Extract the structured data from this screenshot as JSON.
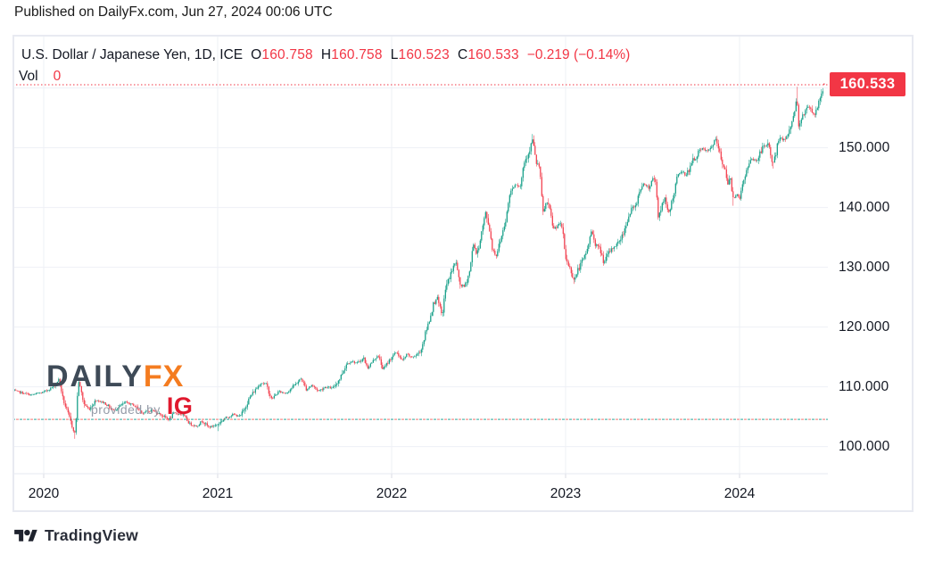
{
  "page": {
    "published": "Published on DailyFx.com, Jun 27, 2024 00:06 UTC"
  },
  "legend": {
    "title": "U.S. Dollar / Japanese Yen, 1D, ICE",
    "open_label": "O",
    "open": "160.758",
    "high_label": "H",
    "high": "160.758",
    "low_label": "L",
    "low": "160.523",
    "close_label": "C",
    "close": "160.533",
    "change": "−0.219 (−0.14%)",
    "vol_label": "Vol",
    "vol_value": "0"
  },
  "axes": {
    "last_price": "160.533",
    "y_labels": [
      "150.000",
      "140.000",
      "130.000",
      "120.000",
      "110.000",
      "100.000"
    ],
    "x_labels": [
      "2020",
      "2021",
      "2022",
      "2023",
      "2024"
    ]
  },
  "watermark": {
    "brand_daily": "DAILY",
    "brand_fx": "FX",
    "provided_by": "provided by",
    "ig": "IG"
  },
  "footer": {
    "attribution": "TradingView"
  },
  "colors": {
    "up": "#089981",
    "down": "#f23645",
    "accent_red": "#f23645",
    "dailyfx_dark": "#3e4a57",
    "dailyfx_orange": "#f47c20",
    "ig_red": "#e0182d",
    "text_dark": "#131722",
    "grid": "#eef0f6"
  },
  "chart_data": {
    "type": "candlestick",
    "title": "U.S. Dollar / Japanese Yen, 1D, ICE",
    "symbol": "USD/JPY",
    "interval": "1D",
    "exchange": "ICE",
    "last": {
      "open": 160.758,
      "high": 160.758,
      "low": 160.523,
      "close": 160.533,
      "change": -0.219,
      "change_pct": -0.14,
      "volume": 0
    },
    "x_unit": "year_decimal",
    "x_range": [
      2019.82,
      2024.5
    ],
    "y_range": [
      97.5,
      162.5
    ],
    "x_ticks": [
      2020,
      2021,
      2022,
      2023,
      2024
    ],
    "y_ticks": [
      100,
      110,
      120,
      130,
      140,
      150,
      160
    ],
    "grid": true,
    "reference_lines": [
      {
        "price": 160.533,
        "style": "dotted",
        "color": "#f23645"
      },
      {
        "price": 104.55,
        "style": "dashed",
        "color": "#2aa79c"
      },
      {
        "price": 104.55,
        "style": "dashed",
        "color": "#f7827f"
      }
    ],
    "price_path": [
      [
        2019.82,
        109.4
      ],
      [
        2019.93,
        108.6
      ],
      [
        2020.0,
        109.1
      ],
      [
        2020.05,
        109.9
      ],
      [
        2020.09,
        111.3
      ],
      [
        2020.11,
        108.0
      ],
      [
        2020.18,
        102.0
      ],
      [
        2020.2,
        111.2
      ],
      [
        2020.23,
        107.2
      ],
      [
        2020.26,
        106.2
      ],
      [
        2020.3,
        107.8
      ],
      [
        2020.35,
        107.3
      ],
      [
        2020.4,
        106.0
      ],
      [
        2020.47,
        107.4
      ],
      [
        2020.52,
        106.9
      ],
      [
        2020.57,
        105.6
      ],
      [
        2020.62,
        106.1
      ],
      [
        2020.67,
        105.4
      ],
      [
        2020.72,
        104.5
      ],
      [
        2020.75,
        105.6
      ],
      [
        2020.8,
        105.3
      ],
      [
        2020.84,
        103.8
      ],
      [
        2020.88,
        103.4
      ],
      [
        2020.91,
        104.3
      ],
      [
        2020.95,
        103.2
      ],
      [
        2021.0,
        103.7
      ],
      [
        2021.04,
        104.7
      ],
      [
        2021.09,
        105.4
      ],
      [
        2021.13,
        105.0
      ],
      [
        2021.19,
        108.5
      ],
      [
        2021.25,
        110.7
      ],
      [
        2021.28,
        110.3
      ],
      [
        2021.31,
        107.9
      ],
      [
        2021.35,
        109.2
      ],
      [
        2021.39,
        108.9
      ],
      [
        2021.44,
        110.2
      ],
      [
        2021.48,
        111.4
      ],
      [
        2021.51,
        109.5
      ],
      [
        2021.54,
        110.3
      ],
      [
        2021.58,
        109.3
      ],
      [
        2021.62,
        110.0
      ],
      [
        2021.66,
        109.7
      ],
      [
        2021.7,
        111.3
      ],
      [
        2021.74,
        113.8
      ],
      [
        2021.77,
        114.3
      ],
      [
        2021.8,
        113.9
      ],
      [
        2021.84,
        114.8
      ],
      [
        2021.86,
        113.1
      ],
      [
        2021.89,
        114.2
      ],
      [
        2021.92,
        115.3
      ],
      [
        2021.95,
        113.0
      ],
      [
        2021.97,
        113.7
      ],
      [
        2022.0,
        115.0
      ],
      [
        2022.03,
        115.8
      ],
      [
        2022.06,
        114.3
      ],
      [
        2022.09,
        115.5
      ],
      [
        2022.11,
        114.9
      ],
      [
        2022.14,
        115.2
      ],
      [
        2022.17,
        116.2
      ],
      [
        2022.19,
        118.5
      ],
      [
        2022.22,
        121.5
      ],
      [
        2022.24,
        123.8
      ],
      [
        2022.26,
        125.0
      ],
      [
        2022.29,
        121.8
      ],
      [
        2022.31,
        126.5
      ],
      [
        2022.34,
        129.0
      ],
      [
        2022.37,
        131.0
      ],
      [
        2022.39,
        127.2
      ],
      [
        2022.42,
        126.7
      ],
      [
        2022.45,
        129.5
      ],
      [
        2022.47,
        134.2
      ],
      [
        2022.49,
        131.9
      ],
      [
        2022.52,
        136.3
      ],
      [
        2022.54,
        139.1
      ],
      [
        2022.56,
        136.8
      ],
      [
        2022.58,
        133.0
      ],
      [
        2022.6,
        131.9
      ],
      [
        2022.63,
        135.0
      ],
      [
        2022.66,
        138.5
      ],
      [
        2022.68,
        142.5
      ],
      [
        2022.71,
        144.0
      ],
      [
        2022.74,
        143.5
      ],
      [
        2022.76,
        147.5
      ],
      [
        2022.79,
        149.3
      ],
      [
        2022.81,
        151.5
      ],
      [
        2022.83,
        147.5
      ],
      [
        2022.85,
        146.8
      ],
      [
        2022.87,
        139.0
      ],
      [
        2022.89,
        141.0
      ],
      [
        2022.91,
        139.5
      ],
      [
        2022.93,
        136.3
      ],
      [
        2022.96,
        137.2
      ],
      [
        2022.98,
        136.8
      ],
      [
        2023.0,
        131.5
      ],
      [
        2023.02,
        130.2
      ],
      [
        2023.05,
        127.8
      ],
      [
        2023.07,
        129.5
      ],
      [
        2023.1,
        131.2
      ],
      [
        2023.12,
        132.5
      ],
      [
        2023.15,
        136.2
      ],
      [
        2023.17,
        134.0
      ],
      [
        2023.2,
        132.8
      ],
      [
        2023.22,
        130.7
      ],
      [
        2023.25,
        132.5
      ],
      [
        2023.28,
        133.5
      ],
      [
        2023.3,
        134.0
      ],
      [
        2023.33,
        135.5
      ],
      [
        2023.35,
        137.5
      ],
      [
        2023.38,
        139.8
      ],
      [
        2023.4,
        140.0
      ],
      [
        2023.43,
        143.3
      ],
      [
        2023.46,
        144.0
      ],
      [
        2023.48,
        143.2
      ],
      [
        2023.5,
        144.9
      ],
      [
        2023.52,
        144.5
      ],
      [
        2023.53,
        138.3
      ],
      [
        2023.55,
        140.0
      ],
      [
        2023.57,
        141.5
      ],
      [
        2023.59,
        138.8
      ],
      [
        2023.62,
        142.0
      ],
      [
        2023.64,
        144.8
      ],
      [
        2023.66,
        146.0
      ],
      [
        2023.69,
        145.5
      ],
      [
        2023.71,
        146.3
      ],
      [
        2023.73,
        147.8
      ],
      [
        2023.75,
        148.5
      ],
      [
        2023.77,
        149.5
      ],
      [
        2023.79,
        149.8
      ],
      [
        2023.82,
        149.3
      ],
      [
        2023.84,
        150.2
      ],
      [
        2023.86,
        151.5
      ],
      [
        2023.88,
        149.8
      ],
      [
        2023.9,
        147.3
      ],
      [
        2023.92,
        146.5
      ],
      [
        2023.93,
        143.8
      ],
      [
        2023.95,
        144.8
      ],
      [
        2023.96,
        141.5
      ],
      [
        2023.99,
        142.5
      ],
      [
        2024.0,
        141.0
      ],
      [
        2024.02,
        144.5
      ],
      [
        2024.05,
        146.8
      ],
      [
        2024.07,
        148.1
      ],
      [
        2024.1,
        147.8
      ],
      [
        2024.12,
        149.3
      ],
      [
        2024.14,
        150.3
      ],
      [
        2024.16,
        150.5
      ],
      [
        2024.17,
        150.2
      ],
      [
        2024.19,
        147.2
      ],
      [
        2024.21,
        149.0
      ],
      [
        2024.22,
        151.3
      ],
      [
        2024.25,
        151.5
      ],
      [
        2024.27,
        151.7
      ],
      [
        2024.29,
        153.0
      ],
      [
        2024.31,
        155.5
      ],
      [
        2024.33,
        158.3
      ],
      [
        2024.34,
        153.5
      ],
      [
        2024.36,
        155.5
      ],
      [
        2024.38,
        156.2
      ],
      [
        2024.4,
        157.0
      ],
      [
        2024.42,
        156.0
      ],
      [
        2024.43,
        155.3
      ],
      [
        2024.45,
        157.0
      ],
      [
        2024.47,
        158.8
      ],
      [
        2024.48,
        159.6
      ],
      [
        2024.49,
        160.4
      ]
    ],
    "wick_extremes": {
      "highs": [
        [
          2022.81,
          152.3
        ],
        [
          2024.33,
          160.2
        ]
      ],
      "lows": [
        [
          2020.18,
          101.3
        ],
        [
          2021.0,
          102.6
        ],
        [
          2023.05,
          127.2
        ],
        [
          2023.96,
          140.3
        ],
        [
          2024.19,
          146.5
        ]
      ]
    }
  }
}
